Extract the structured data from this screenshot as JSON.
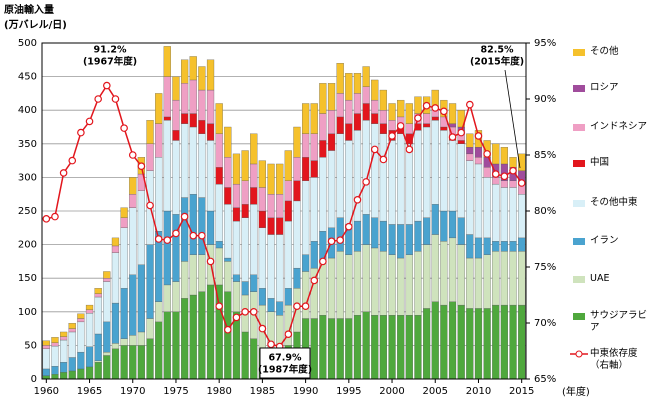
{
  "chart_data": {
    "type": "stacked-bar-line",
    "ylabel": "原油輸入量",
    "yunit": "(万バレル/日)",
    "xlabel": "(年度)",
    "x": [
      1960,
      1961,
      1962,
      1963,
      1964,
      1965,
      1966,
      1967,
      1968,
      1969,
      1970,
      1971,
      1972,
      1973,
      1974,
      1975,
      1976,
      1977,
      1978,
      1979,
      1980,
      1981,
      1982,
      1983,
      1984,
      1985,
      1986,
      1987,
      1988,
      1989,
      1990,
      1991,
      1992,
      1993,
      1994,
      1995,
      1996,
      1997,
      1998,
      1999,
      2000,
      2001,
      2002,
      2003,
      2004,
      2005,
      2006,
      2007,
      2008,
      2009,
      2010,
      2011,
      2012,
      2013,
      2014,
      2015
    ],
    "xlim": [
      1959.5,
      2015.5
    ],
    "xticks": [
      1960,
      1965,
      1970,
      1975,
      1980,
      1985,
      1990,
      1995,
      2000,
      2005,
      2010,
      2015
    ],
    "ylim": [
      0,
      500
    ],
    "yticks": [
      0,
      50,
      100,
      150,
      200,
      250,
      300,
      350,
      400,
      450,
      500
    ],
    "y2lim": [
      65,
      95
    ],
    "y2ticks": [
      {
        "value": 65,
        "label": "65%"
      },
      {
        "value": 70,
        "label": "70%"
      },
      {
        "value": 75,
        "label": "75%"
      },
      {
        "value": 80,
        "label": "80%"
      },
      {
        "value": 85,
        "label": "85%"
      },
      {
        "value": 90,
        "label": "90%"
      },
      {
        "value": 95,
        "label": "95%"
      }
    ],
    "grid": true,
    "series": [
      {
        "name": "サウジアラビア",
        "color": "#4fa83d",
        "values": [
          5,
          7,
          10,
          12,
          15,
          18,
          25,
          35,
          45,
          50,
          50,
          50,
          60,
          85,
          100,
          100,
          120,
          125,
          130,
          140,
          140,
          130,
          100,
          70,
          60,
          45,
          40,
          40,
          50,
          70,
          90,
          90,
          95,
          90,
          90,
          90,
          95,
          100,
          95,
          95,
          95,
          95,
          95,
          95,
          105,
          115,
          110,
          115,
          110,
          105,
          105,
          105,
          110,
          110,
          110,
          110
        ]
      },
      {
        "name": "UAE",
        "color": "#cfe3bd",
        "values": [
          0,
          0,
          0,
          0,
          0,
          0,
          2,
          5,
          8,
          10,
          15,
          20,
          30,
          30,
          40,
          45,
          55,
          60,
          55,
          60,
          55,
          45,
          45,
          55,
          70,
          65,
          60,
          55,
          60,
          65,
          70,
          75,
          80,
          90,
          100,
          95,
          95,
          100,
          100,
          95,
          90,
          85,
          90,
          95,
          95,
          100,
          95,
          95,
          90,
          75,
          75,
          80,
          80,
          80,
          80,
          80
        ]
      },
      {
        "name": "イラン",
        "color": "#4aa3cf",
        "values": [
          10,
          12,
          15,
          20,
          25,
          30,
          40,
          45,
          60,
          75,
          90,
          100,
          110,
          105,
          110,
          100,
          95,
          90,
          85,
          50,
          10,
          5,
          10,
          20,
          25,
          25,
          20,
          20,
          25,
          30,
          25,
          40,
          45,
          45,
          50,
          45,
          45,
          45,
          45,
          45,
          45,
          50,
          45,
          45,
          40,
          45,
          45,
          40,
          40,
          35,
          30,
          25,
          15,
          15,
          15,
          20
        ]
      },
      {
        "name": "その他中東",
        "color": "#d8eff7",
        "values": [
          30,
          30,
          33,
          38,
          45,
          50,
          55,
          60,
          75,
          90,
          100,
          110,
          110,
          110,
          135,
          110,
          110,
          100,
          95,
          105,
          85,
          80,
          80,
          95,
          105,
          90,
          95,
          100,
          100,
          100,
          110,
          95,
          110,
          115,
          125,
          125,
          135,
          140,
          140,
          130,
          125,
          135,
          120,
          135,
          135,
          125,
          120,
          105,
          110,
          110,
          110,
          90,
          85,
          80,
          80,
          65
        ]
      },
      {
        "name": "中国",
        "color": "#e2161d",
        "values": [
          0,
          0,
          0,
          0,
          0,
          0,
          0,
          0,
          0,
          0,
          0,
          0,
          0,
          0,
          5,
          15,
          15,
          20,
          20,
          25,
          25,
          25,
          20,
          20,
          25,
          25,
          25,
          25,
          30,
          30,
          35,
          25,
          25,
          25,
          25,
          25,
          25,
          25,
          15,
          15,
          15,
          10,
          15,
          10,
          5,
          5,
          5,
          5,
          5,
          0,
          0,
          0,
          0,
          0,
          0,
          0
        ]
      },
      {
        "name": "インドネシア",
        "color": "#ef9fc4",
        "values": [
          5,
          5,
          5,
          5,
          5,
          5,
          5,
          5,
          10,
          15,
          20,
          25,
          40,
          50,
          60,
          45,
          45,
          50,
          45,
          50,
          50,
          45,
          35,
          35,
          35,
          35,
          35,
          35,
          30,
          35,
          35,
          40,
          40,
          35,
          35,
          35,
          30,
          25,
          20,
          20,
          15,
          15,
          15,
          15,
          15,
          15,
          15,
          15,
          15,
          10,
          10,
          15,
          10,
          10,
          10,
          15
        ]
      },
      {
        "name": "ロシア",
        "color": "#a04c9c",
        "values": [
          0,
          0,
          0,
          0,
          0,
          0,
          0,
          0,
          0,
          0,
          0,
          0,
          0,
          0,
          0,
          0,
          0,
          0,
          0,
          0,
          0,
          0,
          0,
          0,
          0,
          0,
          0,
          0,
          0,
          0,
          0,
          0,
          0,
          0,
          0,
          0,
          0,
          0,
          0,
          0,
          0,
          0,
          0,
          0,
          0,
          0,
          0,
          5,
          5,
          10,
          15,
          15,
          20,
          25,
          20,
          20
        ]
      },
      {
        "name": "その他",
        "color": "#f5c12c",
        "values": [
          7,
          8,
          7,
          8,
          7,
          7,
          8,
          10,
          12,
          15,
          25,
          25,
          35,
          45,
          45,
          35,
          35,
          35,
          35,
          45,
          45,
          45,
          45,
          45,
          45,
          40,
          45,
          45,
          45,
          45,
          45,
          45,
          45,
          40,
          45,
          40,
          30,
          30,
          30,
          30,
          25,
          25,
          30,
          25,
          25,
          25,
          25,
          30,
          25,
          20,
          25,
          25,
          30,
          25,
          15,
          25
        ]
      },
      {
        "name": "中東依存度（右軸）",
        "color": "#e2161d",
        "axis": "y2",
        "values": [
          79.3,
          79.5,
          83.4,
          84.5,
          87.0,
          88.0,
          90.0,
          91.2,
          90.0,
          87.4,
          85.0,
          84.0,
          80.5,
          77.5,
          77.4,
          78.0,
          79.5,
          77.8,
          77.8,
          75.5,
          71.5,
          69.4,
          70.5,
          71.0,
          71.0,
          69.5,
          68.1,
          67.9,
          69.0,
          71.5,
          71.5,
          73.8,
          75.5,
          77.3,
          77.4,
          78.6,
          81.0,
          82.6,
          85.5,
          84.6,
          86.7,
          87.6,
          85.5,
          88.3,
          89.4,
          89.2,
          88.9,
          86.6,
          87.0,
          89.5,
          86.7,
          85.1,
          83.3,
          83.1,
          83.6,
          82.5
        ]
      }
    ],
    "annotations": [
      {
        "text": "91.2%",
        "sub": "(1967年度)"
      },
      {
        "text": "67.9%",
        "sub": "(1987年度)"
      },
      {
        "text": "82.5%",
        "sub": "(2015年度)"
      }
    ]
  }
}
